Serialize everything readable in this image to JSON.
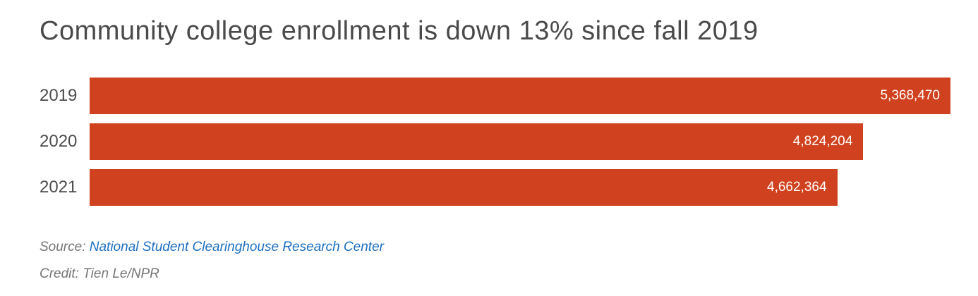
{
  "chart_data": {
    "type": "bar",
    "orientation": "horizontal",
    "title": "Community college enrollment is down 13% since fall 2019",
    "categories": [
      "2019",
      "2020",
      "2021"
    ],
    "values": [
      5368470,
      4824204,
      4662364
    ],
    "value_labels": [
      "5,368,470",
      "4,824,204",
      "4,662,364"
    ],
    "xlabel": "",
    "ylabel": "",
    "xlim": [
      0,
      5368470
    ],
    "grid": false,
    "legend_position": "none",
    "bar_color": "#d0421f",
    "value_label_position": "inside-end"
  },
  "footer": {
    "source_prefix": "Source: ",
    "source_link": "National Student Clearinghouse Research Center",
    "credit": "Credit: Tien Le/NPR"
  },
  "colors": {
    "bar": "#d0421f",
    "title": "#4a4a4a",
    "category_label": "#4d4d4d",
    "value_label": "#ffffff",
    "link": "#1d6fc0",
    "muted_text": "#757575",
    "background": "#ffffff"
  }
}
